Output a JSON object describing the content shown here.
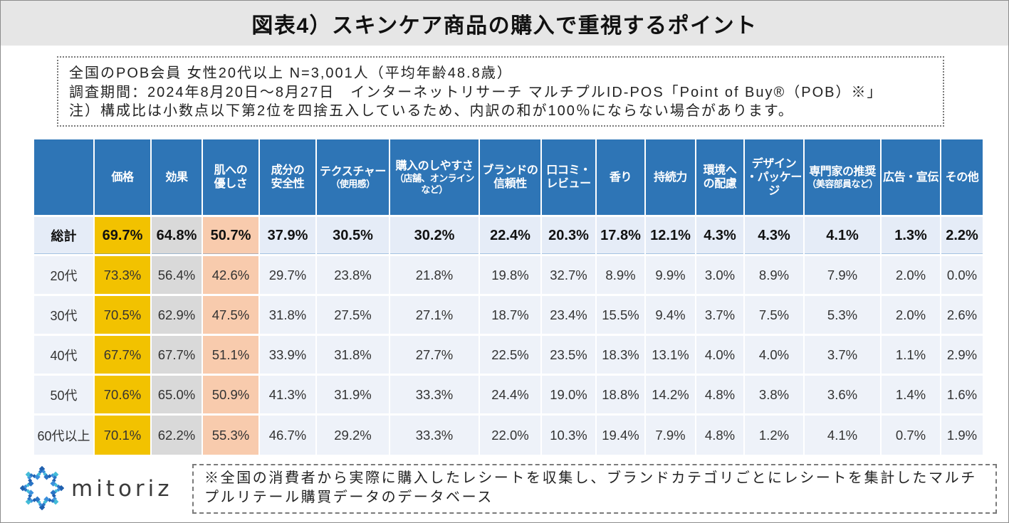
{
  "title": "図表4）スキンケア商品の購入で重視するポイント",
  "notes": [
    "全国のPOB会員 女性20代以上 N=3,001人（平均年齢48.8歳）",
    "調査期間：2024年8月20日～8月27日　インターネットリサーチ マルチプルID-POS「Point of Buy®（POB）※」",
    "注）構成比は小数点以下第2位を四捨五入しているため、内訳の和が100％にならない場合があります。"
  ],
  "footnote": "※全国の消費者から実際に購入したレシートを収集し、ブランドカテゴリごとにレシートを集計したマルチプルリテール購買データのデータベース",
  "logo": {
    "text": "mitoriz",
    "icon": "mitoriz-logo-icon"
  },
  "colors": {
    "header": "#2e75b6",
    "total_row": "#e5ecf7",
    "body_row": "#eef2f9",
    "column_highlights": [
      "#f2c200",
      "#d9d9d9",
      "#f8cbad"
    ]
  },
  "chart_data": {
    "type": "table",
    "unit": "%",
    "columns": [
      {
        "label": "価格"
      },
      {
        "label": "効果"
      },
      {
        "label": "肌への\n優しさ"
      },
      {
        "label": "成分の\n安全性"
      },
      {
        "label": "テクスチャー",
        "sub": "（使用感）"
      },
      {
        "label": "購入のしやすさ",
        "sub": "（店舗、オンライン\nなど）"
      },
      {
        "label": "ブランドの\n信頼性"
      },
      {
        "label": "口コミ・\nレビュー"
      },
      {
        "label": "香り"
      },
      {
        "label": "持続力"
      },
      {
        "label": "環境へ\nの配慮"
      },
      {
        "label": "デザイン\n・パッケー\nジ"
      },
      {
        "label": "専門家の推奨",
        "sub": "（美容部員など）"
      },
      {
        "label": "広告・宣伝"
      },
      {
        "label": "その他"
      }
    ],
    "rows": [
      {
        "label": "総計",
        "values": [
          69.7,
          64.8,
          50.7,
          37.9,
          30.5,
          30.2,
          22.4,
          20.3,
          17.8,
          12.1,
          4.3,
          4.3,
          4.1,
          1.3,
          2.2
        ]
      },
      {
        "label": "20代",
        "values": [
          73.3,
          56.4,
          42.6,
          29.7,
          23.8,
          21.8,
          19.8,
          32.7,
          8.9,
          9.9,
          3.0,
          8.9,
          7.9,
          2.0,
          0.0
        ]
      },
      {
        "label": "30代",
        "values": [
          70.5,
          62.9,
          47.5,
          31.8,
          27.5,
          27.1,
          18.7,
          23.4,
          15.5,
          9.4,
          3.7,
          7.5,
          5.3,
          2.0,
          2.6
        ]
      },
      {
        "label": "40代",
        "values": [
          67.7,
          67.7,
          51.1,
          33.9,
          31.8,
          27.7,
          22.5,
          23.5,
          18.3,
          13.1,
          4.0,
          4.0,
          3.7,
          1.1,
          2.9
        ]
      },
      {
        "label": "50代",
        "values": [
          70.6,
          65.0,
          50.9,
          41.3,
          31.9,
          33.3,
          24.4,
          19.0,
          18.8,
          14.2,
          4.8,
          3.8,
          3.6,
          1.4,
          1.6
        ]
      },
      {
        "label": "60代以上",
        "values": [
          70.1,
          62.2,
          55.3,
          46.7,
          29.2,
          33.3,
          22.0,
          10.3,
          19.4,
          7.9,
          4.8,
          1.2,
          4.1,
          0.7,
          1.9
        ]
      }
    ]
  }
}
